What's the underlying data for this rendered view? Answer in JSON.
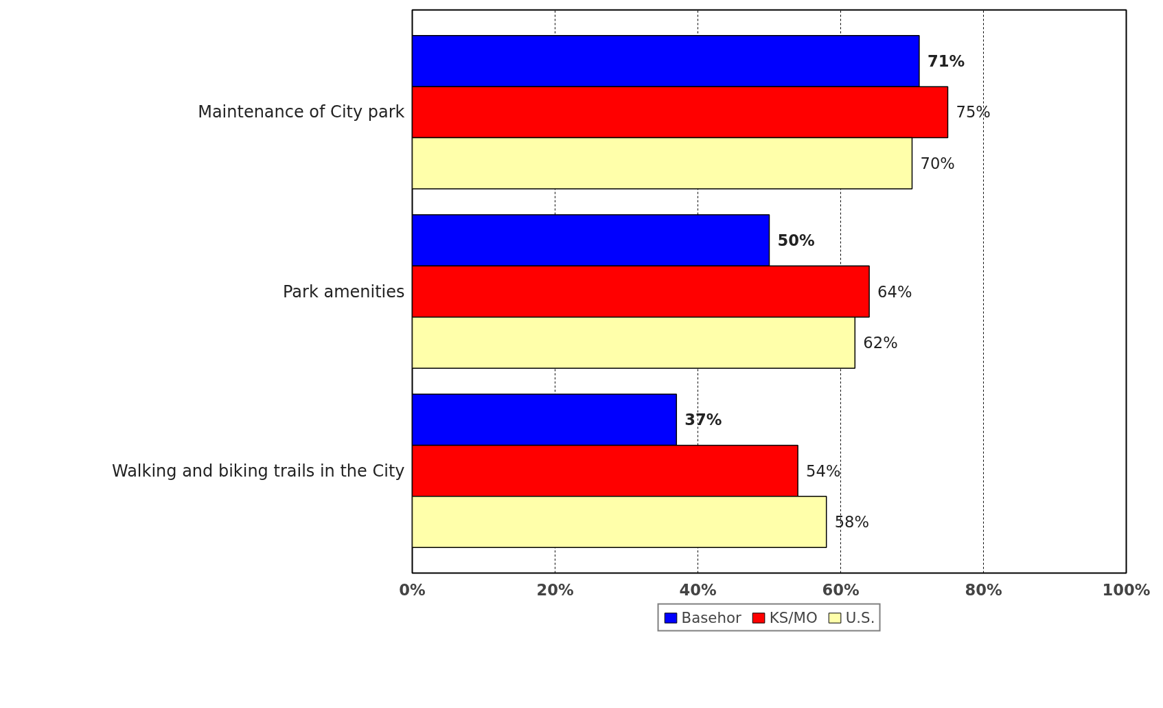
{
  "chart_data": {
    "type": "bar",
    "orientation": "horizontal",
    "categories": [
      "Maintenance of City park",
      "Park amenities",
      "Walking and biking trails in the City"
    ],
    "series": [
      {
        "name": "Basehor",
        "color": "#0000ff",
        "values": [
          71,
          50,
          37
        ],
        "value_labels": [
          "71%",
          "50%",
          "37%"
        ]
      },
      {
        "name": "KS/MO",
        "color": "#ff0000",
        "values": [
          75,
          64,
          54
        ],
        "value_labels": [
          "75%",
          "64%",
          "54%"
        ]
      },
      {
        "name": "U.S.",
        "color": "#ffffaa",
        "values": [
          70,
          62,
          58
        ],
        "value_labels": [
          "70%",
          "62%",
          "58%"
        ]
      }
    ],
    "xlim": [
      0,
      100
    ],
    "xticks": [
      {
        "value": 0,
        "label": "0%"
      },
      {
        "value": 20,
        "label": "20%"
      },
      {
        "value": 40,
        "label": "40%"
      },
      {
        "value": 60,
        "label": "60%"
      },
      {
        "value": 80,
        "label": "80%"
      },
      {
        "value": 100,
        "label": "100%"
      }
    ],
    "grid": "x",
    "legend": "bottom"
  }
}
